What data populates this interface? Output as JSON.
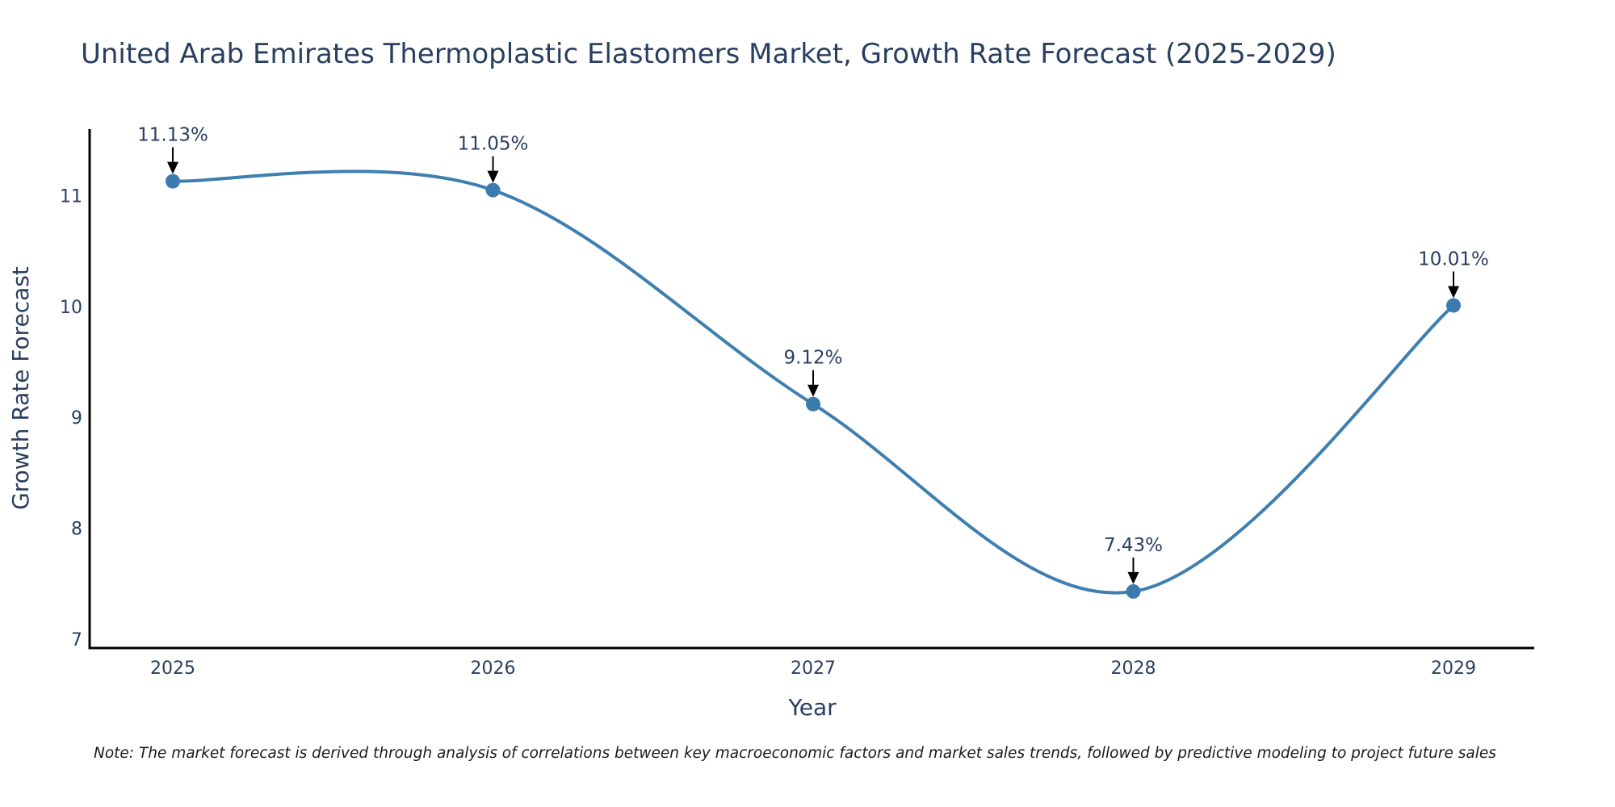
{
  "chart_data": {
    "type": "line",
    "title": "United Arab Emirates Thermoplastic Elastomers Market, Growth Rate Forecast (2025-2029)",
    "xlabel": "Year",
    "ylabel": "Growth Rate Forecast",
    "categories": [
      "2025",
      "2026",
      "2027",
      "2028",
      "2029"
    ],
    "values": [
      11.13,
      11.05,
      9.12,
      7.43,
      10.01
    ],
    "data_labels": [
      "11.13%",
      "11.05%",
      "9.12%",
      "7.43%",
      "10.01%"
    ],
    "yticks": [
      "7",
      "8",
      "9",
      "10",
      "11"
    ],
    "ylim": [
      6.92,
      11.6
    ],
    "line_shape": "spline",
    "grid": false,
    "legend": "none",
    "color": "#3f7faf",
    "marker_color": "#3c7bb0"
  },
  "note": "Note: The market forecast is derived through analysis of correlations between key macroeconomic factors and market sales trends, followed by predictive modeling to project future sales"
}
